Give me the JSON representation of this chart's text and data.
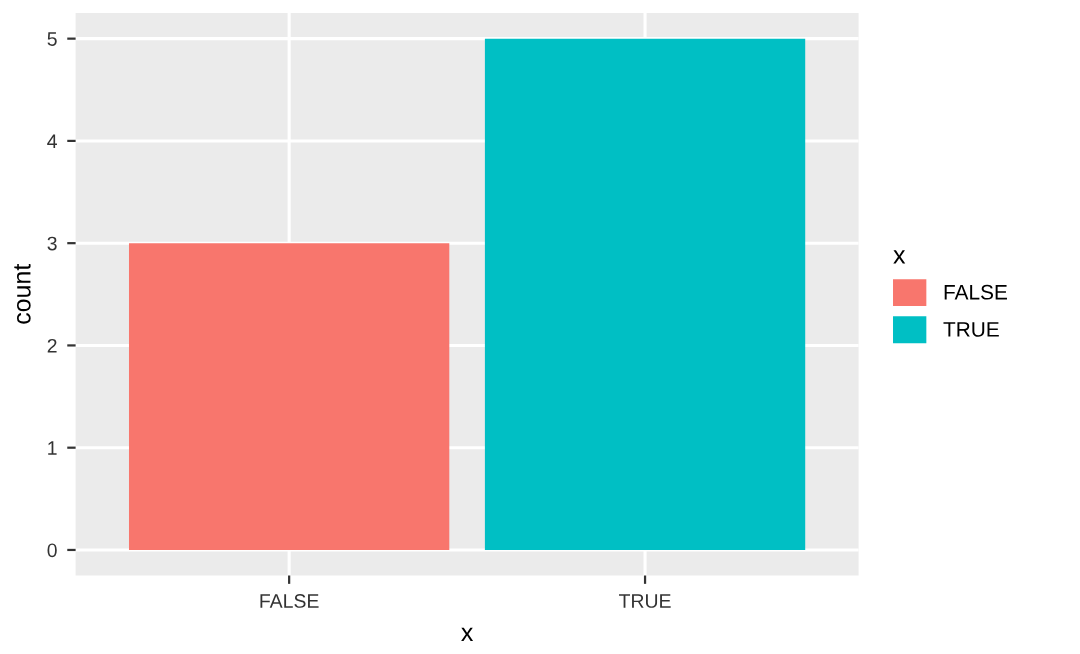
{
  "chart_data": {
    "type": "bar",
    "xlabel": "x",
    "ylabel": "count",
    "legend_title": "x",
    "categories": [
      "FALSE",
      "TRUE"
    ],
    "series": [
      {
        "name": "FALSE",
        "color": "#f8766d",
        "values": [
          3,
          null
        ]
      },
      {
        "name": "TRUE",
        "color": "#00bfc4",
        "values": [
          null,
          5
        ]
      }
    ],
    "ylim": [
      -0.25,
      5.25
    ],
    "yticks": [
      0,
      1,
      2,
      3,
      4,
      5
    ],
    "grid": true,
    "legend": "right"
  }
}
